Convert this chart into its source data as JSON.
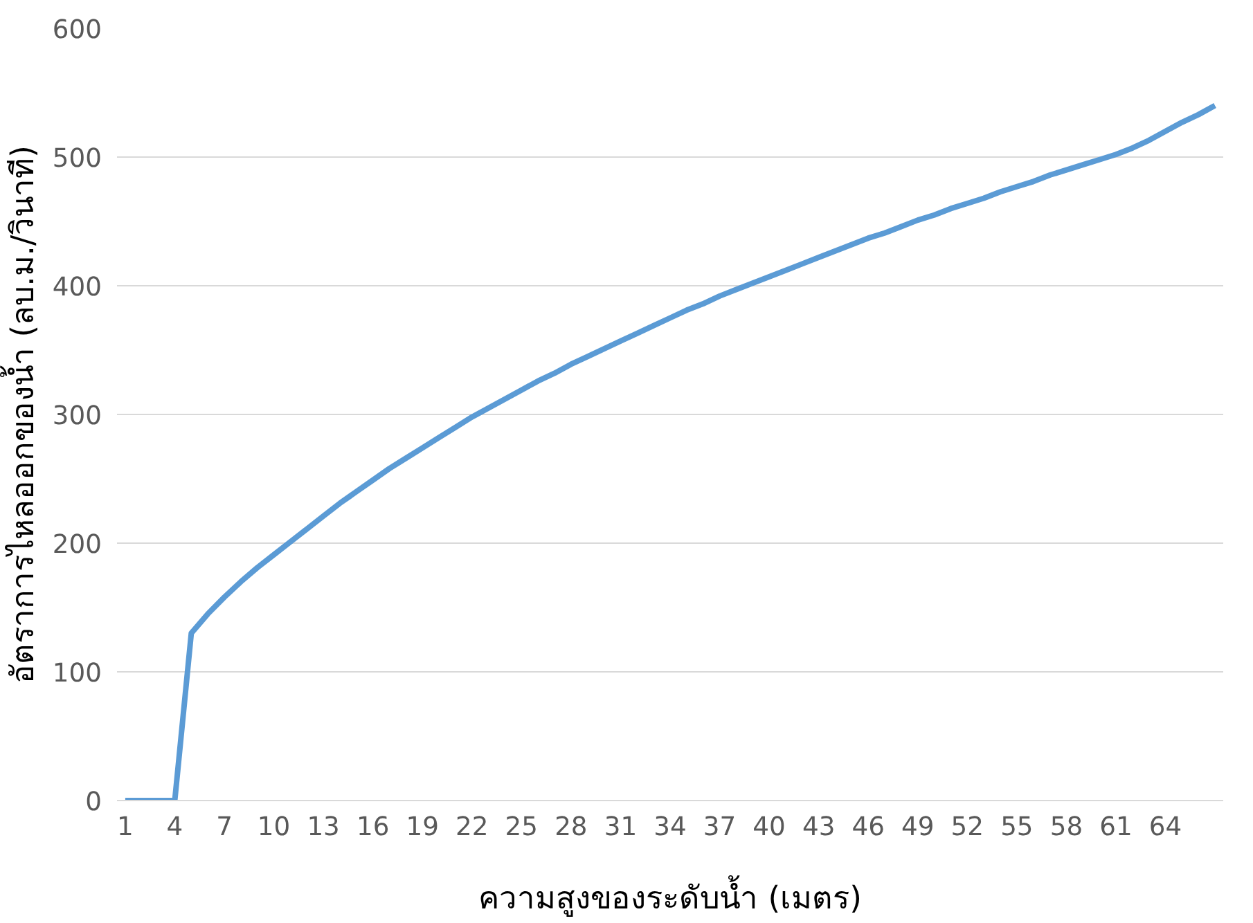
{
  "chart_data": {
    "type": "line",
    "xlabel": "ความสูงของระดับน้ำ (เมตร)",
    "ylabel": "อัตราการไหลออกของน้ำ (ลบ.ม./วินาที)",
    "categories": [
      "1",
      null,
      null,
      "4",
      null,
      null,
      "7",
      null,
      null,
      "10",
      null,
      null,
      "13",
      null,
      null,
      "16",
      null,
      null,
      "19",
      null,
      null,
      "22",
      null,
      null,
      "25",
      null,
      null,
      "28",
      null,
      null,
      "31",
      null,
      null,
      "34",
      null,
      null,
      "37",
      null,
      null,
      "40",
      null,
      null,
      "43",
      null,
      null,
      "46",
      null,
      null,
      "49",
      null,
      null,
      "52",
      null,
      null,
      "55",
      null,
      null,
      "58",
      null,
      null,
      "61",
      null,
      null,
      "64",
      null,
      null,
      null
    ],
    "series": [
      {
        "color": "#5b9bd5",
        "values": [
          0,
          0,
          0,
          0,
          130,
          145,
          158,
          170,
          181,
          191,
          201,
          211,
          221,
          231,
          240,
          249,
          258,
          266,
          274,
          282,
          290,
          298,
          305,
          312,
          319,
          326,
          332,
          339,
          345,
          351,
          357,
          363,
          369,
          375,
          381,
          386,
          392,
          397,
          402,
          407,
          412,
          417,
          422,
          427,
          432,
          437,
          441,
          446,
          451,
          455,
          460,
          464,
          468,
          473,
          477,
          481,
          486,
          490,
          494,
          498,
          502,
          507,
          513,
          520,
          527,
          533,
          540
        ]
      }
    ],
    "ylim": [
      0,
      600
    ],
    "yticks": [
      0,
      100,
      200,
      300,
      400,
      500,
      600
    ],
    "grid": "y",
    "marker": "none",
    "line_style": "solid"
  }
}
